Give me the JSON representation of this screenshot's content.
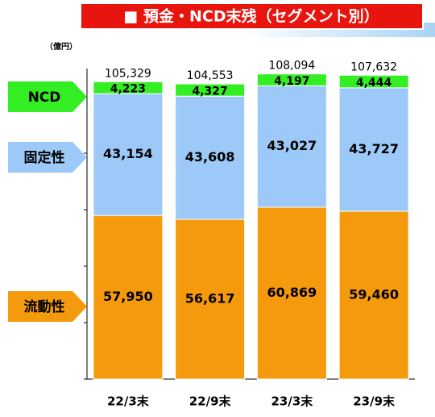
{
  "chart_data": {
    "type": "bar",
    "stacked": true,
    "title": "■ 預金・NCD末残（セグメント別）",
    "unit_label": "（億円）",
    "categories": [
      "22/3末",
      "22/9末",
      "23/3末",
      "23/9末"
    ],
    "series": [
      {
        "name": "流動性",
        "color": "#f59a0c",
        "values": [
          57950,
          56617,
          60869,
          59460
        ],
        "value_labels": [
          "57,950",
          "56,617",
          "60,869",
          "59,460"
        ]
      },
      {
        "name": "固定性",
        "color": "#9cc9f7",
        "values": [
          43154,
          43608,
          43027,
          43727
        ],
        "value_labels": [
          "43,154",
          "43,608",
          "43,027",
          "43,727"
        ]
      },
      {
        "name": "NCD",
        "color": "#33ee22",
        "values": [
          4223,
          4327,
          4197,
          4444
        ],
        "value_labels": [
          "4,223",
          "4,327",
          "4,197",
          "4,444"
        ]
      }
    ],
    "totals": [
      105329,
      104553,
      108094,
      107632
    ],
    "total_labels": [
      "105,329",
      "104,553",
      "108,094",
      "107,632"
    ],
    "ylim": [
      0,
      110000
    ],
    "yticks": [
      0,
      20000,
      40000,
      60000,
      80000,
      100000
    ]
  }
}
